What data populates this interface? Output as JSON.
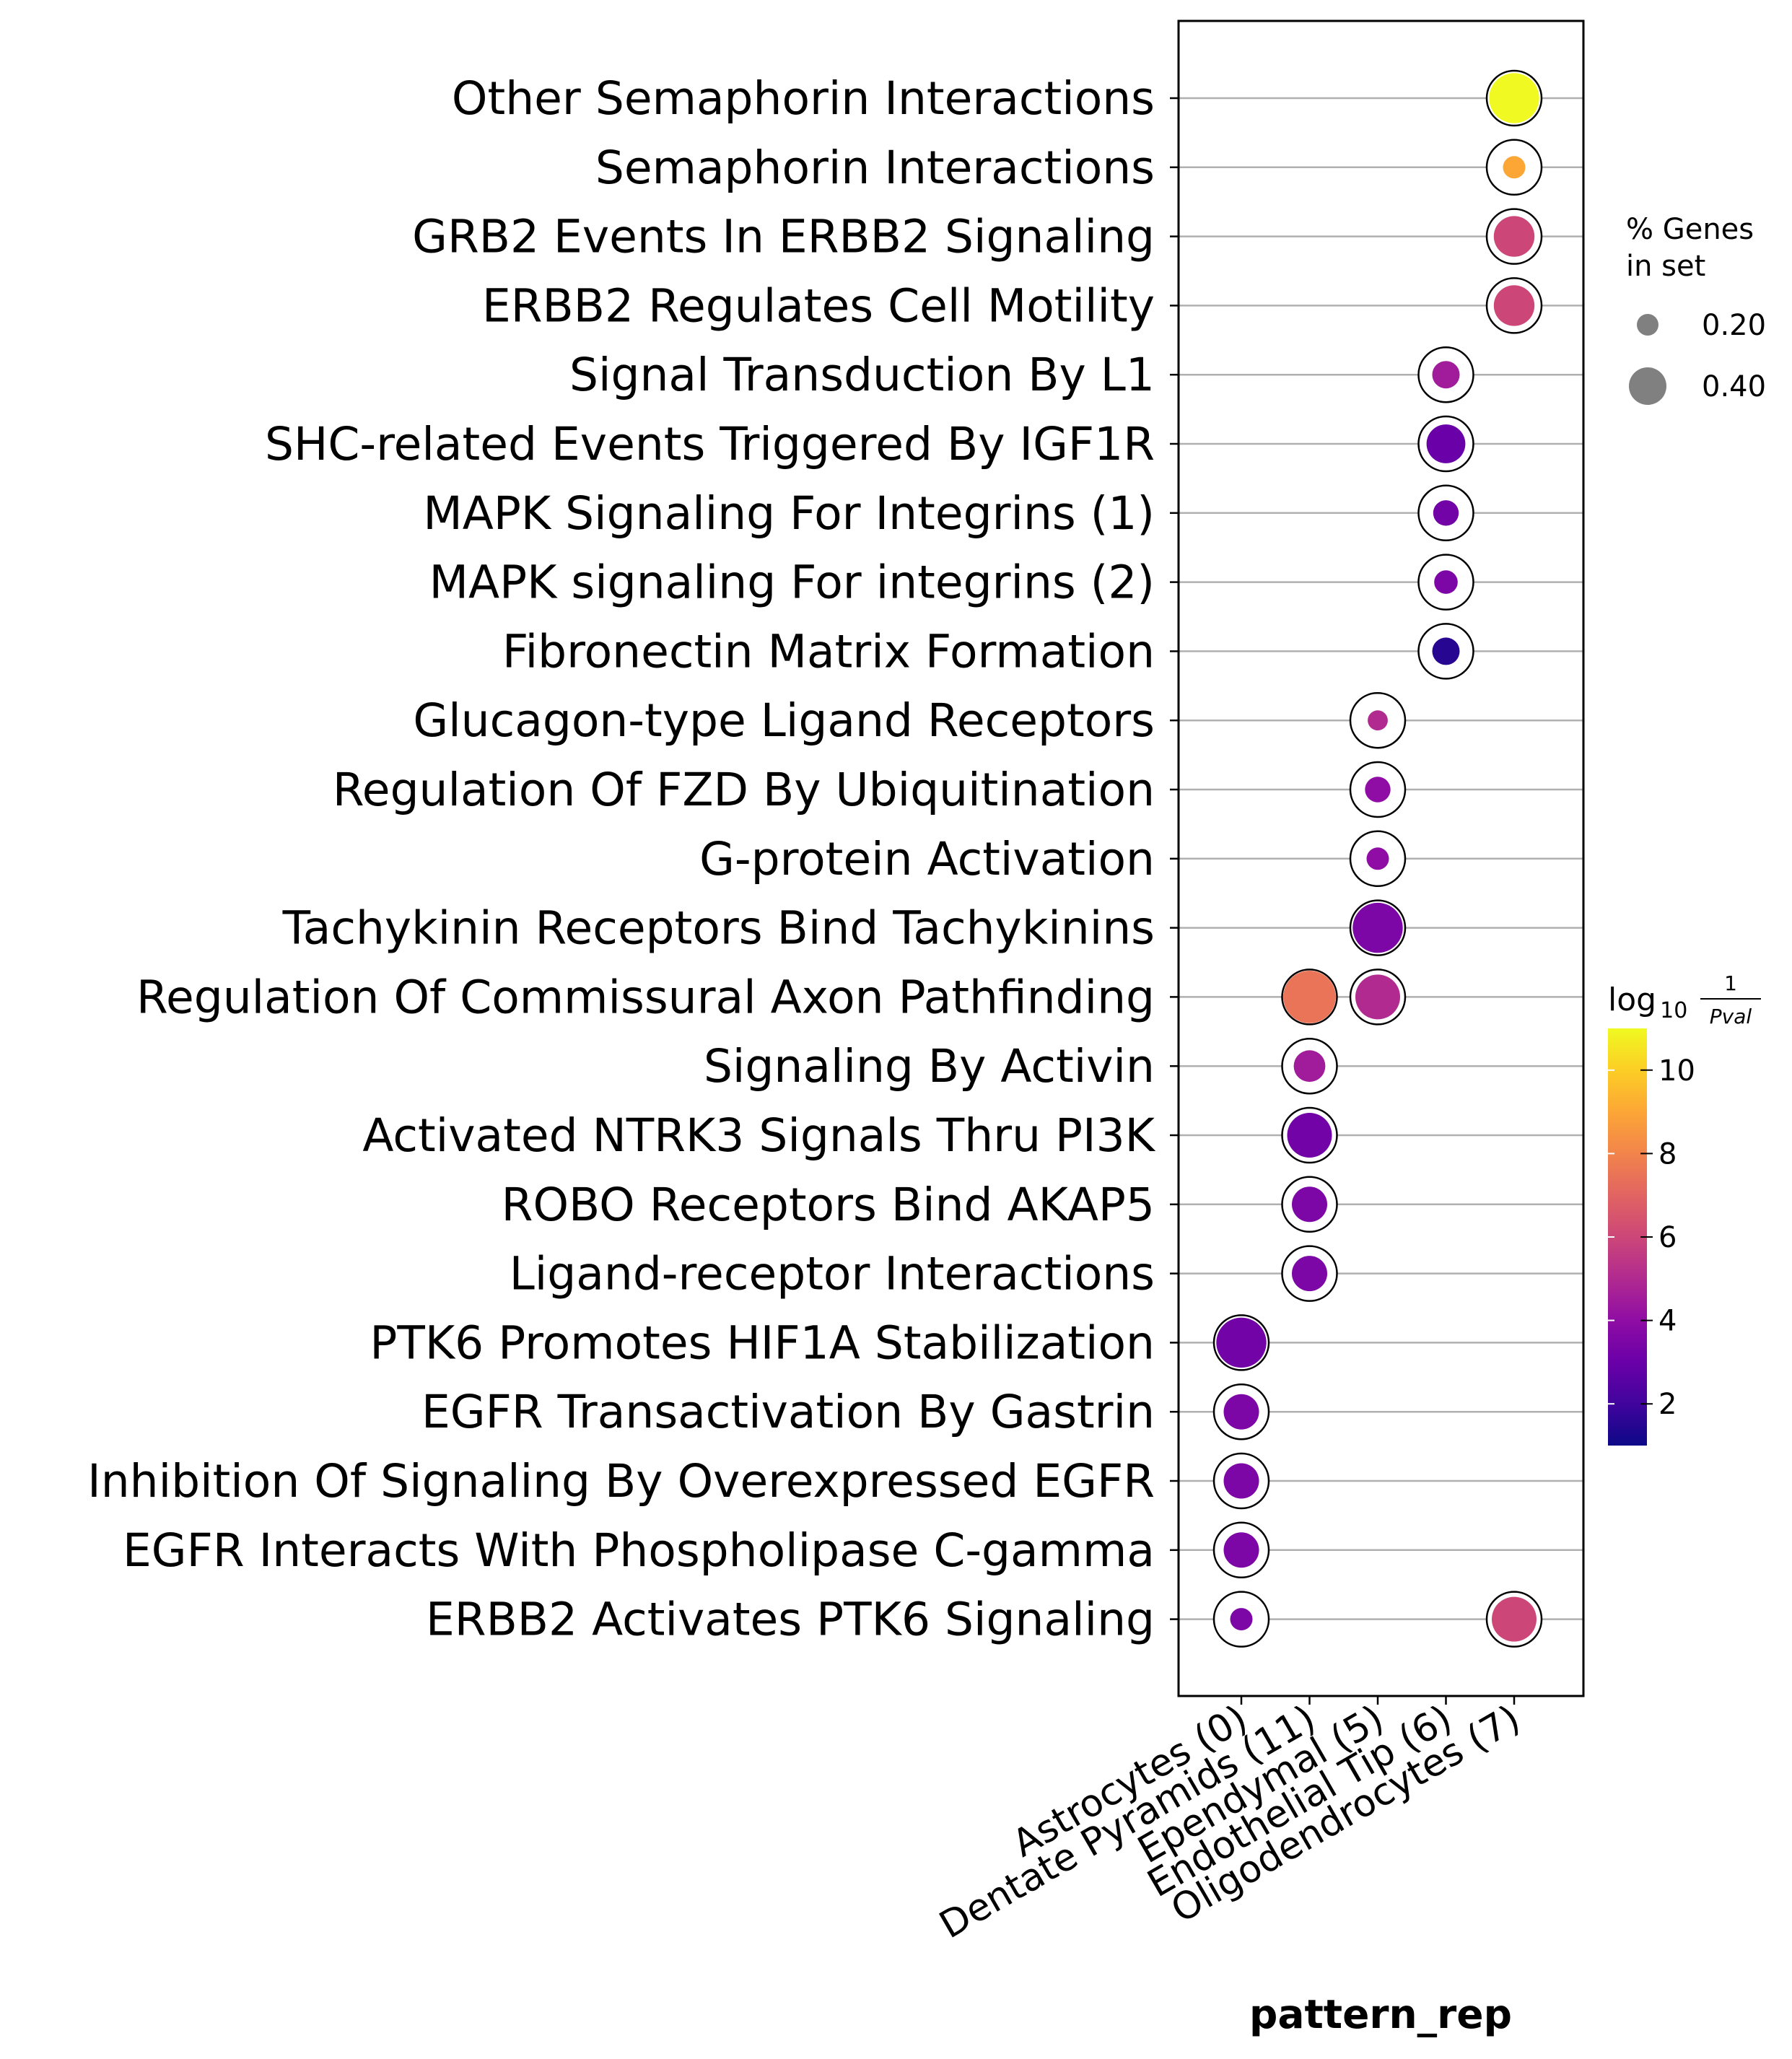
{
  "chart_data": {
    "type": "scatter",
    "subtype": "dot-plot",
    "xlabel": "pattern_rep",
    "categories_x": [
      "Astrocytes (0)",
      "Dentate Pyramids (11)",
      "Ependymal (5)",
      "Endothelial Tip (6)",
      "Oligodendrocytes (7)"
    ],
    "pathways": [
      "Other Semaphorin Interactions",
      "Semaphorin Interactions",
      "GRB2 Events In ERBB2 Signaling",
      "ERBB2 Regulates Cell Motility",
      "Signal Transduction By L1",
      "SHC-related Events Triggered By IGF1R",
      "MAPK Signaling For Integrins (1)",
      "MAPK signaling For integrins (2)",
      "Fibronectin Matrix Formation",
      "Glucagon-type Ligand Receptors",
      "Regulation Of FZD By Ubiquitination",
      "G-protein Activation",
      "Tachykinin Receptors Bind Tachykinins",
      "Regulation Of Commissural Axon Pathfinding",
      "Signaling By Activin",
      "Activated NTRK3 Signals Thru PI3K",
      "ROBO Receptors Bind AKAP5",
      "Ligand-receptor Interactions",
      "PTK6 Promotes HIF1A Stabilization",
      "EGFR Transactivation By Gastrin",
      "Inhibition Of Signaling By Overexpressed EGFR",
      "EGFR Interacts With Phospholipase C-gamma",
      "ERBB2 Activates PTK6 Signaling"
    ],
    "points": [
      {
        "pathway": "Other Semaphorin Interactions",
        "group": "Oligodendrocytes (7)",
        "pct_genes": 0.5,
        "log10_inv_pval": 11.0
      },
      {
        "pathway": "Semaphorin Interactions",
        "group": "Oligodendrocytes (7)",
        "pct_genes": 0.1,
        "log10_inv_pval": 9.0
      },
      {
        "pathway": "GRB2 Events In ERBB2 Signaling",
        "group": "Oligodendrocytes (7)",
        "pct_genes": 0.33,
        "log10_inv_pval": 6.0
      },
      {
        "pathway": "ERBB2 Regulates Cell Motility",
        "group": "Oligodendrocytes (7)",
        "pct_genes": 0.33,
        "log10_inv_pval": 6.0
      },
      {
        "pathway": "Signal Transduction By L1",
        "group": "Endothelial Tip (6)",
        "pct_genes": 0.15,
        "log10_inv_pval": 4.5
      },
      {
        "pathway": "SHC-related Events Triggered By IGF1R",
        "group": "Endothelial Tip (6)",
        "pct_genes": 0.3,
        "log10_inv_pval": 3.0
      },
      {
        "pathway": "MAPK Signaling For Integrins (1)",
        "group": "Endothelial Tip (6)",
        "pct_genes": 0.13,
        "log10_inv_pval": 3.2
      },
      {
        "pathway": "MAPK signaling For integrins (2)",
        "group": "Endothelial Tip (6)",
        "pct_genes": 0.11,
        "log10_inv_pval": 3.5
      },
      {
        "pathway": "Fibronectin Matrix Formation",
        "group": "Endothelial Tip (6)",
        "pct_genes": 0.15,
        "log10_inv_pval": 1.5
      },
      {
        "pathway": "Glucagon-type Ligand Receptors",
        "group": "Ependymal (5)",
        "pct_genes": 0.08,
        "log10_inv_pval": 5.0
      },
      {
        "pathway": "Regulation Of FZD By Ubiquitination",
        "group": "Ependymal (5)",
        "pct_genes": 0.13,
        "log10_inv_pval": 4.0
      },
      {
        "pathway": "G-protein Activation",
        "group": "Ependymal (5)",
        "pct_genes": 0.1,
        "log10_inv_pval": 4.0
      },
      {
        "pathway": "Tachykinin Receptors Bind Tachykinins",
        "group": "Ependymal (5)",
        "pct_genes": 0.5,
        "log10_inv_pval": 3.5
      },
      {
        "pathway": "Regulation Of Commissural Axon Pathfinding",
        "group": "Dentate Pyramids (11)",
        "pct_genes": 0.55,
        "log10_inv_pval": 7.5
      },
      {
        "pathway": "Regulation Of Commissural Axon Pathfinding",
        "group": "Ependymal (5)",
        "pct_genes": 0.4,
        "log10_inv_pval": 5.0
      },
      {
        "pathway": "Signaling By Activin",
        "group": "Dentate Pyramids (11)",
        "pct_genes": 0.2,
        "log10_inv_pval": 4.5
      },
      {
        "pathway": "Activated NTRK3 Signals Thru PI3K",
        "group": "Dentate Pyramids (11)",
        "pct_genes": 0.4,
        "log10_inv_pval": 3.2
      },
      {
        "pathway": "ROBO Receptors Bind AKAP5",
        "group": "Dentate Pyramids (11)",
        "pct_genes": 0.25,
        "log10_inv_pval": 3.5
      },
      {
        "pathway": "Ligand-receptor Interactions",
        "group": "Dentate Pyramids (11)",
        "pct_genes": 0.25,
        "log10_inv_pval": 3.5
      },
      {
        "pathway": "PTK6 Promotes HIF1A Stabilization",
        "group": "Astrocytes (0)",
        "pct_genes": 0.5,
        "log10_inv_pval": 3.2
      },
      {
        "pathway": "EGFR Transactivation By Gastrin",
        "group": "Astrocytes (0)",
        "pct_genes": 0.25,
        "log10_inv_pval": 3.5
      },
      {
        "pathway": "Inhibition Of Signaling By Overexpressed EGFR",
        "group": "Astrocytes (0)",
        "pct_genes": 0.25,
        "log10_inv_pval": 3.5
      },
      {
        "pathway": "EGFR Interacts With Phospholipase C-gamma",
        "group": "Astrocytes (0)",
        "pct_genes": 0.25,
        "log10_inv_pval": 3.5
      },
      {
        "pathway": "ERBB2 Activates PTK6 Signaling",
        "group": "Astrocytes (0)",
        "pct_genes": 0.1,
        "log10_inv_pval": 3.5
      },
      {
        "pathway": "ERBB2 Activates PTK6 Signaling",
        "group": "Oligodendrocytes (7)",
        "pct_genes": 0.4,
        "log10_inv_pval": 6.0
      }
    ],
    "size_legend": {
      "title_lines": [
        "% Genes",
        "in set"
      ],
      "entries": [
        {
          "label": "0.20",
          "value": 0.2
        },
        {
          "label": "0.40",
          "value": 0.4
        }
      ]
    },
    "colorbar": {
      "colormap": "plasma",
      "range": [
        1,
        11
      ],
      "ticks": [
        2,
        4,
        6,
        8,
        10
      ],
      "tick_labels": [
        "2",
        "4",
        "6",
        "8",
        "10"
      ],
      "title_base": "log",
      "title_sub": "10",
      "title_num": "1",
      "title_den": "Pval"
    },
    "grid": "horizontal",
    "ring_color": "#000000",
    "line_color": "#b0b0b0"
  }
}
